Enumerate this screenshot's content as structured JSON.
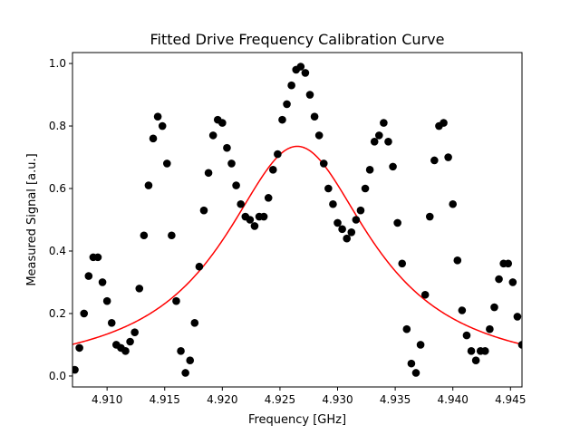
{
  "chart_data": {
    "type": "scatter",
    "title": "Fitted Drive Frequency Calibration Curve",
    "xlabel": "Frequency [GHz]",
    "ylabel": "Measured Signal [a.u.]",
    "xlim": [
      4.907,
      4.946
    ],
    "ylim": [
      -0.035,
      1.035
    ],
    "xticks": [
      4.91,
      4.915,
      4.92,
      4.925,
      4.93,
      4.935,
      4.94,
      4.945
    ],
    "xtick_labels": [
      "4.910",
      "4.915",
      "4.920",
      "4.925",
      "4.930",
      "4.935",
      "4.940",
      "4.945"
    ],
    "yticks": [
      0.0,
      0.2,
      0.4,
      0.6,
      0.8,
      1.0
    ],
    "ytick_labels": [
      "0.0",
      "0.2",
      "0.4",
      "0.6",
      "0.8",
      "1.0"
    ],
    "grid": false,
    "legend": "none",
    "series": [
      {
        "kind": "scatter",
        "color": "#000000",
        "x": [
          4.9072,
          4.9076,
          4.908,
          4.9084,
          4.9088,
          4.9092,
          4.9096,
          4.91,
          4.9104,
          4.9108,
          4.9112,
          4.9116,
          4.912,
          4.9124,
          4.9128,
          4.9132,
          4.9136,
          4.914,
          4.9144,
          4.9148,
          4.9152,
          4.9156,
          4.916,
          4.9164,
          4.9168,
          4.9172,
          4.9176,
          4.918,
          4.9184,
          4.9188,
          4.9192,
          4.9196,
          4.92,
          4.9204,
          4.9208,
          4.9212,
          4.9216,
          4.922,
          4.9224,
          4.9228,
          4.9232,
          4.9236,
          4.924,
          4.9244,
          4.9248,
          4.9252,
          4.9256,
          4.926,
          4.9264,
          4.9268,
          4.9272,
          4.9276,
          4.928,
          4.9284,
          4.9288,
          4.9292,
          4.9296,
          4.93,
          4.9304,
          4.9308,
          4.9312,
          4.9316,
          4.932,
          4.9324,
          4.9328,
          4.9332,
          4.9336,
          4.934,
          4.9344,
          4.9348,
          4.9352,
          4.9356,
          4.936,
          4.9364,
          4.9368,
          4.9372,
          4.9376,
          4.938,
          4.9384,
          4.9388,
          4.9392,
          4.9396,
          4.94,
          4.9404,
          4.9408,
          4.9412,
          4.9416,
          4.942,
          4.9424,
          4.9428,
          4.9432,
          4.9436,
          4.944,
          4.9444,
          4.9448,
          4.9452,
          4.9456,
          4.946
        ],
        "y": [
          0.02,
          0.09,
          0.2,
          0.32,
          0.38,
          0.38,
          0.3,
          0.24,
          0.17,
          0.1,
          0.09,
          0.08,
          0.11,
          0.14,
          0.28,
          0.45,
          0.61,
          0.76,
          0.83,
          0.8,
          0.68,
          0.45,
          0.24,
          0.08,
          0.01,
          0.05,
          0.17,
          0.35,
          0.53,
          0.65,
          0.77,
          0.82,
          0.81,
          0.73,
          0.68,
          0.61,
          0.55,
          0.51,
          0.5,
          0.48,
          0.51,
          0.51,
          0.57,
          0.66,
          0.71,
          0.82,
          0.87,
          0.93,
          0.98,
          0.99,
          0.97,
          0.9,
          0.83,
          0.77,
          0.68,
          0.6,
          0.55,
          0.49,
          0.47,
          0.44,
          0.46,
          0.5,
          0.53,
          0.6,
          0.66,
          0.75,
          0.77,
          0.81,
          0.75,
          0.67,
          0.49,
          0.36,
          0.15,
          0.04,
          0.01,
          0.1,
          0.26,
          0.51,
          0.69,
          0.8,
          0.81,
          0.7,
          0.55,
          0.37,
          0.21,
          0.13,
          0.08,
          0.05,
          0.08,
          0.08,
          0.15,
          0.22,
          0.31,
          0.36,
          0.36,
          0.3,
          0.19,
          0.1
        ]
      },
      {
        "kind": "line",
        "color": "#ff0000",
        "model": "lorentzian",
        "amplitude": 0.735,
        "center": 4.9265,
        "hwhm": 0.0078
      }
    ]
  }
}
